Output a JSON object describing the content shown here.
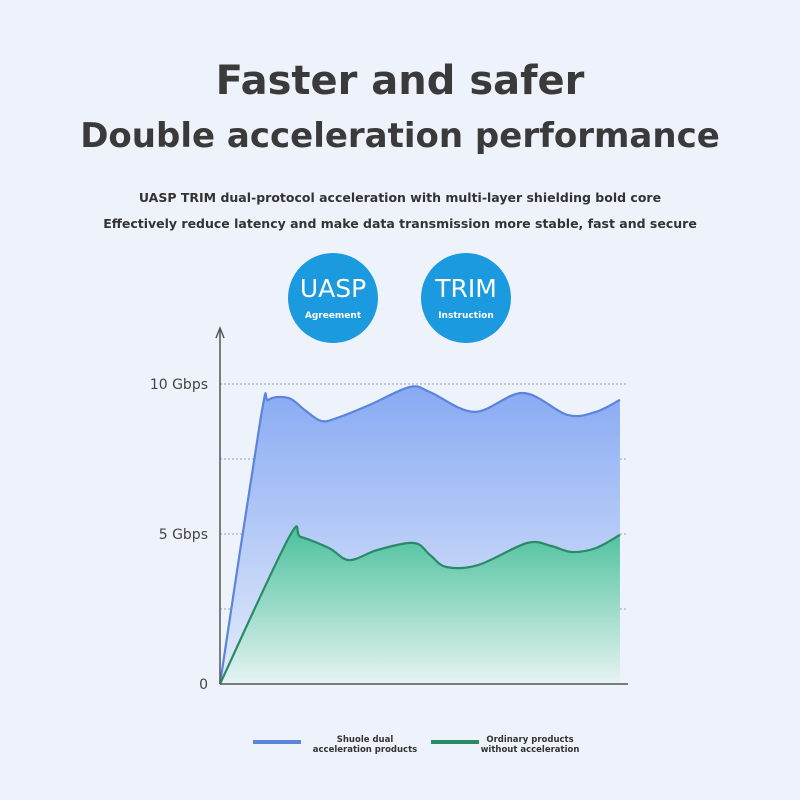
{
  "header": {
    "title": "Faster and safer",
    "subtitle": "Double acceleration performance",
    "line1": "UASP TRIM dual-protocol acceleration with multi-layer shielding bold core",
    "line2": "Effectively reduce latency and make data transmission more stable, fast and secure"
  },
  "badges": [
    {
      "title": "UASP",
      "caption": "Agreement",
      "color": "#1b9ae0"
    },
    {
      "title": "TRIM",
      "caption": "Instruction",
      "color": "#1b9ae0"
    }
  ],
  "chart_data": {
    "type": "area",
    "ylim": [
      0,
      10
    ],
    "yticks": [
      {
        "value": 0,
        "label": "0"
      },
      {
        "value": 5,
        "label": "5 Gbps"
      },
      {
        "value": 10,
        "label": "10 Gbps"
      }
    ],
    "grid_values": [
      2.5,
      5,
      7.5,
      10
    ],
    "grid": true,
    "legend_position": "bottom",
    "series": [
      {
        "name": "Shuole dual acceleration products",
        "color": "#5b84dc",
        "x": [
          0,
          10,
          12,
          17,
          21,
          25,
          29,
          37,
          47,
          52,
          63,
          75,
          86,
          93,
          99
        ],
        "y": [
          0,
          8.8,
          9.47,
          9.53,
          9.13,
          8.77,
          8.87,
          9.3,
          9.9,
          9.73,
          9.07,
          9.7,
          8.97,
          9.07,
          9.47
        ]
      },
      {
        "name": "Ordinary products without acceleration",
        "color": "#2a8a66",
        "x": [
          0,
          17,
          20,
          27,
          32,
          39,
          48,
          52,
          56,
          64,
          76,
          82,
          87,
          93,
          99
        ],
        "y": [
          0,
          4.87,
          4.9,
          4.53,
          4.13,
          4.47,
          4.7,
          4.3,
          3.9,
          3.97,
          4.7,
          4.6,
          4.4,
          4.53,
          4.97
        ]
      }
    ]
  }
}
